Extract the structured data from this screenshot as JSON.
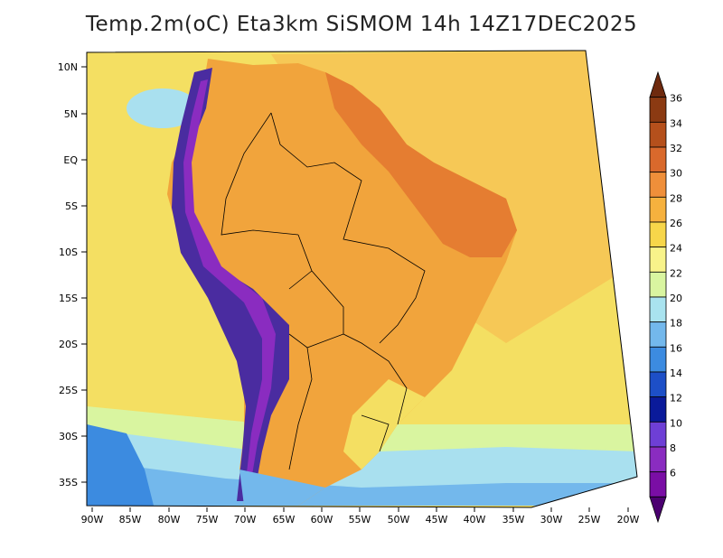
{
  "title": "Temp.2m(oC) Eta3km SiSMOM 14h 14Z17DEC2025",
  "lat_ticks": [
    "10N",
    "5N",
    "EQ",
    "5S",
    "10S",
    "15S",
    "20S",
    "25S",
    "30S",
    "35S"
  ],
  "lon_ticks": [
    "90W",
    "85W",
    "80W",
    "75W",
    "70W",
    "65W",
    "60W",
    "55W",
    "50W",
    "45W",
    "40W",
    "35W",
    "30W",
    "25W",
    "20W"
  ],
  "colorbar": {
    "labels": [
      "36",
      "34",
      "32",
      "30",
      "28",
      "26",
      "24",
      "22",
      "20",
      "18",
      "16",
      "14",
      "12",
      "10",
      "8",
      "6"
    ],
    "colors": [
      "#6e2a0e",
      "#8b3a12",
      "#b5501c",
      "#d9692c",
      "#ef8f3a",
      "#f6b13e",
      "#f7d64a",
      "#f8f38a",
      "#d9f5a0",
      "#a9e3ef",
      "#73b8ec",
      "#3c8be0",
      "#1d4fc7",
      "#0a1a9a",
      "#6e3fd6",
      "#8a2cc0",
      "#7a0ea5",
      "#4b0070"
    ]
  },
  "colors": {
    "ocean_warm": "#f6c856",
    "ocean_mid": "#f4df62",
    "ocean_cool": "#a9e0ef",
    "ocean_cold": "#4f94e4",
    "land": "#f1a43c",
    "land_hot": "#e57d31",
    "andes": "#4a2ca0"
  }
}
